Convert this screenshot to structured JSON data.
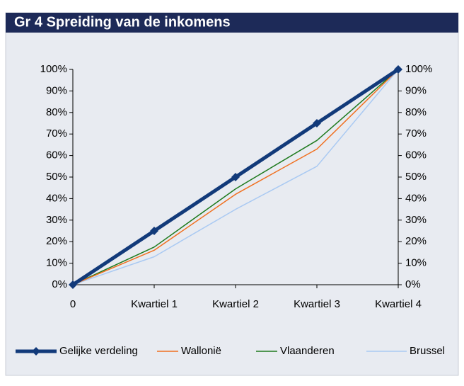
{
  "chart_data": {
    "type": "line",
    "title": "Gr 4 Spreiding van de inkomens",
    "categories": [
      "0",
      "Kwartiel 1",
      "Kwartiel 2",
      "Kwartiel 3",
      "Kwartiel 4"
    ],
    "series": [
      {
        "name": "Gelijke verdeling",
        "color": "#123a7a",
        "marker": "diamond",
        "values": [
          0,
          25,
          50,
          75,
          100
        ]
      },
      {
        "name": "Wallonië",
        "color": "#f07020",
        "values": [
          0,
          16,
          42,
          63,
          100
        ]
      },
      {
        "name": "Vlaanderen",
        "color": "#1e7a1e",
        "values": [
          0,
          17.5,
          44.5,
          67,
          100
        ]
      },
      {
        "name": "Brussel",
        "color": "#a9c9f2",
        "values": [
          0,
          13,
          35,
          55,
          100
        ]
      }
    ],
    "ylim": [
      0,
      100
    ],
    "yticks": [
      {
        "value": 0,
        "label": "0%"
      },
      {
        "value": 10,
        "label": "10%"
      },
      {
        "value": 20,
        "label": "20%"
      },
      {
        "value": 30,
        "label": "30%"
      },
      {
        "value": 40,
        "label": "40%"
      },
      {
        "value": 50,
        "label": "50%"
      },
      {
        "value": 60,
        "label": "60%"
      },
      {
        "value": 70,
        "label": "70%"
      },
      {
        "value": 80,
        "label": "80%"
      },
      {
        "value": 90,
        "label": "90%"
      },
      {
        "value": 100,
        "label": "100%"
      }
    ],
    "y2lim": [
      0,
      100
    ],
    "y2ticks": [
      {
        "value": 0,
        "label": "0%"
      },
      {
        "value": 10,
        "label": "10%"
      },
      {
        "value": 20,
        "label": "20%"
      },
      {
        "value": 30,
        "label": "30%"
      },
      {
        "value": 40,
        "label": "40%"
      },
      {
        "value": 50,
        "label": "50%"
      },
      {
        "value": 60,
        "label": "60%"
      },
      {
        "value": 70,
        "label": "70%"
      },
      {
        "value": 80,
        "label": "80%"
      },
      {
        "value": 90,
        "label": "90%"
      },
      {
        "value": 100,
        "label": "100%"
      }
    ],
    "legend": "bottom"
  }
}
